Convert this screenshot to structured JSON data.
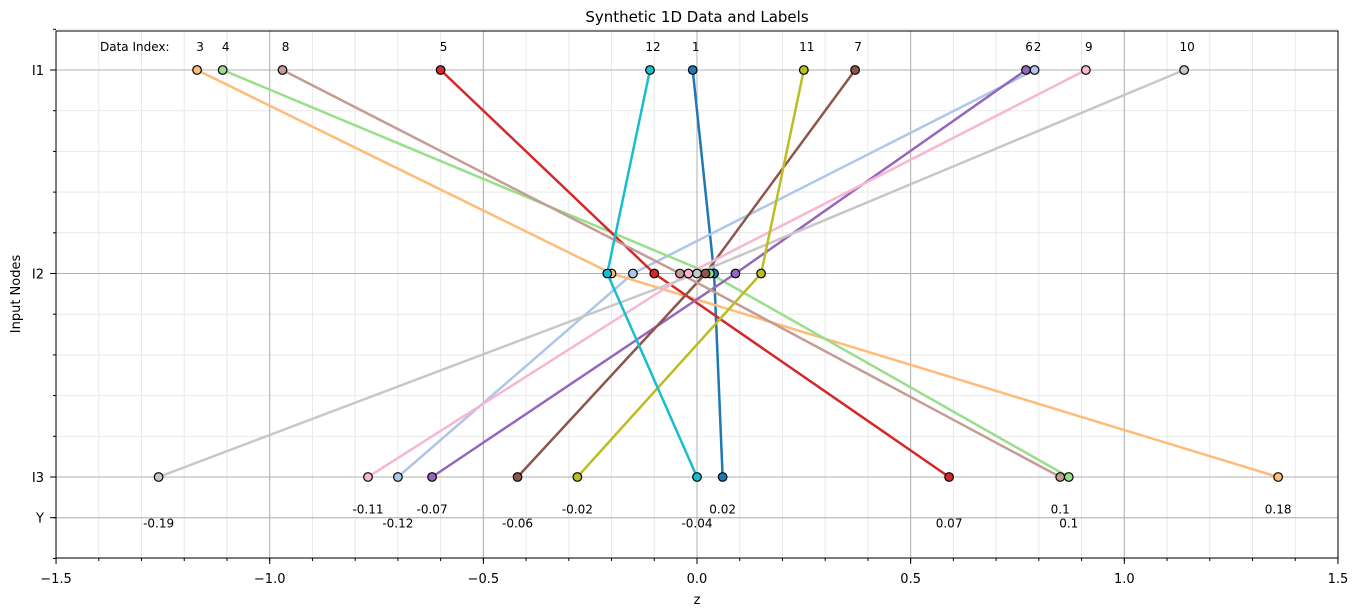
{
  "chart_data": {
    "type": "line",
    "title": "Synthetic 1D Data and Labels",
    "xlabel": "z",
    "ylabel": "Input Nodes",
    "xlim": [
      -1.5,
      1.5
    ],
    "x_ticks": [
      -1.5,
      -1.0,
      -0.5,
      0.0,
      0.5,
      1.0,
      1.5
    ],
    "x_tick_labels": [
      "−1.5",
      "−1.0",
      "−0.5",
      "0.0",
      "0.5",
      "1.0",
      "1.5"
    ],
    "y_levels": [
      {
        "label": "I1",
        "level": 4
      },
      {
        "label": "I2",
        "level": 2
      },
      {
        "label": "I3",
        "level": 0
      },
      {
        "label": "Y",
        "level": -0.4
      }
    ],
    "ylim": [
      -0.8,
      4.4
    ],
    "grid": true,
    "index_header": "Data Index:",
    "series": [
      {
        "index": "1",
        "color": "#1f77b4",
        "i1": -0.01,
        "i2": 0.04,
        "i3": 0.06,
        "y_label": "0.02"
      },
      {
        "index": "2",
        "color": "#aec7e8",
        "i1": 0.79,
        "i2": -0.15,
        "i3": -0.7,
        "y_label": "-0.12"
      },
      {
        "index": "3",
        "color": "#ffbb78",
        "i1": -1.17,
        "i2": -0.2,
        "i3": 1.36,
        "y_label": "0.18"
      },
      {
        "index": "4",
        "color": "#98df8a",
        "i1": -1.11,
        "i2": 0.03,
        "i3": 0.87,
        "y_label": "0.1"
      },
      {
        "index": "5",
        "color": "#d62728",
        "i1": -0.6,
        "i2": -0.1,
        "i3": 0.59,
        "y_label": "0.07"
      },
      {
        "index": "6",
        "color": "#9467bd",
        "i1": 0.77,
        "i2": 0.09,
        "i3": -0.62,
        "y_label": "-0.07"
      },
      {
        "index": "7",
        "color": "#8c564b",
        "i1": 0.37,
        "i2": 0.02,
        "i3": -0.42,
        "y_label": "-0.06"
      },
      {
        "index": "8",
        "color": "#c49c94",
        "i1": -0.97,
        "i2": -0.04,
        "i3": 0.85,
        "y_label": "0.1"
      },
      {
        "index": "9",
        "color": "#f7b6d2",
        "i1": 0.91,
        "i2": -0.02,
        "i3": -0.77,
        "y_label": "-0.11"
      },
      {
        "index": "10",
        "color": "#c7c7c7",
        "i1": 1.14,
        "i2": 0.0,
        "i3": -1.26,
        "y_label": "-0.19"
      },
      {
        "index": "11",
        "color": "#bcbd22",
        "i1": 0.25,
        "i2": 0.15,
        "i3": -0.28,
        "y_label": "-0.02"
      },
      {
        "index": "12",
        "color": "#17becf",
        "i1": -0.11,
        "i2": -0.21,
        "i3": 0.0,
        "y_label": "-0.04"
      }
    ]
  }
}
